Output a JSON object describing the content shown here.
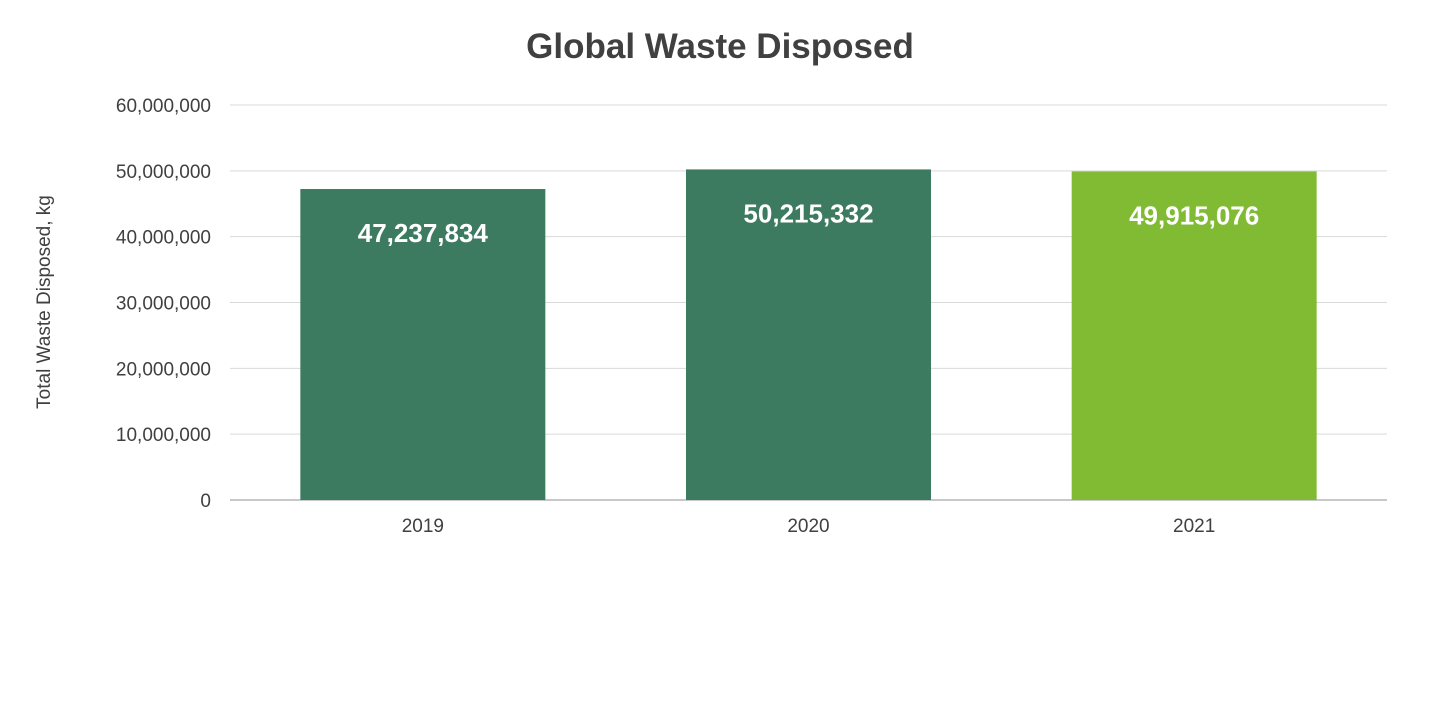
{
  "chart_data": {
    "type": "bar",
    "title": "Global Waste Disposed",
    "xlabel": "",
    "ylabel": "Total Waste Disposed, kg",
    "categories": [
      "2019",
      "2020",
      "2021"
    ],
    "values": [
      47237834,
      50215332,
      49915076
    ],
    "value_labels": [
      "47,237,834",
      "50,215,332",
      "49,915,076"
    ],
    "bar_colors": [
      "#3d7b61",
      "#3d7b61",
      "#80bb33"
    ],
    "ylim": [
      0,
      60000000
    ],
    "yticks": [
      0,
      10000000,
      20000000,
      30000000,
      40000000,
      50000000,
      60000000
    ],
    "ytick_labels": [
      "0",
      "10,000,000",
      "20,000,000",
      "30,000,000",
      "40,000,000",
      "50,000,000",
      "60,000,000"
    ],
    "grid": true,
    "legend": "none"
  }
}
